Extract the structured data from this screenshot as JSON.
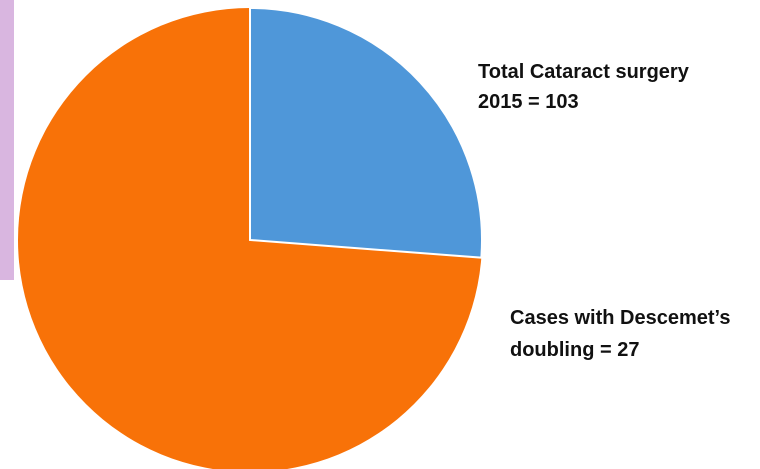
{
  "chart_data": {
    "type": "pie",
    "total": 103,
    "value": 27,
    "total_color": "#f87208",
    "value_color": "#4f97d9",
    "annotations": [
      [
        "Total Cataract surgery",
        "2015  =  103"
      ],
      [
        "Cases with Descemet’s",
        "doubling = 27"
      ]
    ]
  }
}
